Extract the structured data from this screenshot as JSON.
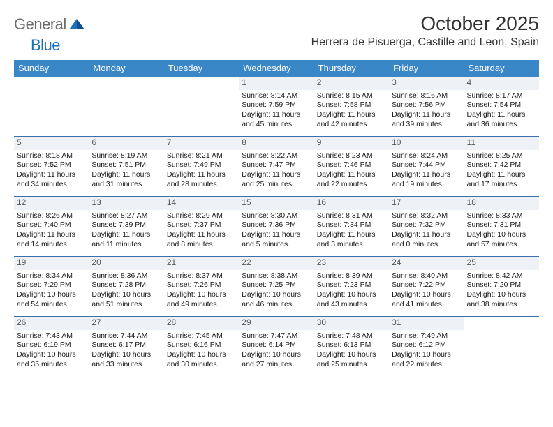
{
  "brand": {
    "general": "General",
    "blue": "Blue"
  },
  "title": "October 2025",
  "location": "Herrera de Pisuerga, Castille and Leon, Spain",
  "colors": {
    "header_bg": "#3a87c8",
    "header_text": "#ffffff",
    "divider": "#3a6fa8",
    "daynum_bg": "#eef1f5",
    "brand_gray": "#6e6e6e",
    "brand_blue": "#1d70b7"
  },
  "dayHeaders": [
    "Sunday",
    "Monday",
    "Tuesday",
    "Wednesday",
    "Thursday",
    "Friday",
    "Saturday"
  ],
  "weeks": [
    [
      null,
      null,
      null,
      {
        "n": "1",
        "sr": "8:14 AM",
        "ss": "7:59 PM",
        "dl": "11 hours and 45 minutes."
      },
      {
        "n": "2",
        "sr": "8:15 AM",
        "ss": "7:58 PM",
        "dl": "11 hours and 42 minutes."
      },
      {
        "n": "3",
        "sr": "8:16 AM",
        "ss": "7:56 PM",
        "dl": "11 hours and 39 minutes."
      },
      {
        "n": "4",
        "sr": "8:17 AM",
        "ss": "7:54 PM",
        "dl": "11 hours and 36 minutes."
      }
    ],
    [
      {
        "n": "5",
        "sr": "8:18 AM",
        "ss": "7:52 PM",
        "dl": "11 hours and 34 minutes."
      },
      {
        "n": "6",
        "sr": "8:19 AM",
        "ss": "7:51 PM",
        "dl": "11 hours and 31 minutes."
      },
      {
        "n": "7",
        "sr": "8:21 AM",
        "ss": "7:49 PM",
        "dl": "11 hours and 28 minutes."
      },
      {
        "n": "8",
        "sr": "8:22 AM",
        "ss": "7:47 PM",
        "dl": "11 hours and 25 minutes."
      },
      {
        "n": "9",
        "sr": "8:23 AM",
        "ss": "7:46 PM",
        "dl": "11 hours and 22 minutes."
      },
      {
        "n": "10",
        "sr": "8:24 AM",
        "ss": "7:44 PM",
        "dl": "11 hours and 19 minutes."
      },
      {
        "n": "11",
        "sr": "8:25 AM",
        "ss": "7:42 PM",
        "dl": "11 hours and 17 minutes."
      }
    ],
    [
      {
        "n": "12",
        "sr": "8:26 AM",
        "ss": "7:40 PM",
        "dl": "11 hours and 14 minutes."
      },
      {
        "n": "13",
        "sr": "8:27 AM",
        "ss": "7:39 PM",
        "dl": "11 hours and 11 minutes."
      },
      {
        "n": "14",
        "sr": "8:29 AM",
        "ss": "7:37 PM",
        "dl": "11 hours and 8 minutes."
      },
      {
        "n": "15",
        "sr": "8:30 AM",
        "ss": "7:36 PM",
        "dl": "11 hours and 5 minutes."
      },
      {
        "n": "16",
        "sr": "8:31 AM",
        "ss": "7:34 PM",
        "dl": "11 hours and 3 minutes."
      },
      {
        "n": "17",
        "sr": "8:32 AM",
        "ss": "7:32 PM",
        "dl": "11 hours and 0 minutes."
      },
      {
        "n": "18",
        "sr": "8:33 AM",
        "ss": "7:31 PM",
        "dl": "10 hours and 57 minutes."
      }
    ],
    [
      {
        "n": "19",
        "sr": "8:34 AM",
        "ss": "7:29 PM",
        "dl": "10 hours and 54 minutes."
      },
      {
        "n": "20",
        "sr": "8:36 AM",
        "ss": "7:28 PM",
        "dl": "10 hours and 51 minutes."
      },
      {
        "n": "21",
        "sr": "8:37 AM",
        "ss": "7:26 PM",
        "dl": "10 hours and 49 minutes."
      },
      {
        "n": "22",
        "sr": "8:38 AM",
        "ss": "7:25 PM",
        "dl": "10 hours and 46 minutes."
      },
      {
        "n": "23",
        "sr": "8:39 AM",
        "ss": "7:23 PM",
        "dl": "10 hours and 43 minutes."
      },
      {
        "n": "24",
        "sr": "8:40 AM",
        "ss": "7:22 PM",
        "dl": "10 hours and 41 minutes."
      },
      {
        "n": "25",
        "sr": "8:42 AM",
        "ss": "7:20 PM",
        "dl": "10 hours and 38 minutes."
      }
    ],
    [
      {
        "n": "26",
        "sr": "7:43 AM",
        "ss": "6:19 PM",
        "dl": "10 hours and 35 minutes."
      },
      {
        "n": "27",
        "sr": "7:44 AM",
        "ss": "6:17 PM",
        "dl": "10 hours and 33 minutes."
      },
      {
        "n": "28",
        "sr": "7:45 AM",
        "ss": "6:16 PM",
        "dl": "10 hours and 30 minutes."
      },
      {
        "n": "29",
        "sr": "7:47 AM",
        "ss": "6:14 PM",
        "dl": "10 hours and 27 minutes."
      },
      {
        "n": "30",
        "sr": "7:48 AM",
        "ss": "6:13 PM",
        "dl": "10 hours and 25 minutes."
      },
      {
        "n": "31",
        "sr": "7:49 AM",
        "ss": "6:12 PM",
        "dl": "10 hours and 22 minutes."
      },
      null
    ]
  ],
  "labels": {
    "sunrise": "Sunrise: ",
    "sunset": "Sunset: ",
    "daylight": "Daylight: "
  }
}
